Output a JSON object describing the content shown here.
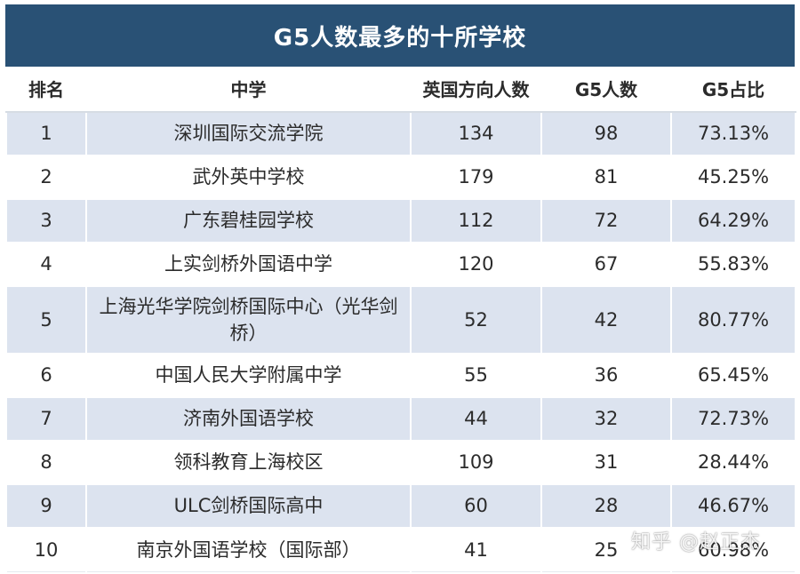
{
  "title": "G5人数最多的十所学校",
  "columns": [
    "排名",
    "中学",
    "英国方向人数",
    "G5人数",
    "G5占比"
  ],
  "rows": [
    {
      "rank": "1",
      "school": "深圳国际交流学院",
      "uk": "134",
      "g5": "98",
      "ratio": "73.13%"
    },
    {
      "rank": "2",
      "school": "武外英中学校",
      "uk": "179",
      "g5": "81",
      "ratio": "45.25%"
    },
    {
      "rank": "3",
      "school": "广东碧桂园学校",
      "uk": "112",
      "g5": "72",
      "ratio": "64.29%"
    },
    {
      "rank": "4",
      "school": "上实剑桥外国语中学",
      "uk": "120",
      "g5": "67",
      "ratio": "55.83%"
    },
    {
      "rank": "5",
      "school": "上海光华学院剑桥国际中心（光华剑桥）",
      "uk": "52",
      "g5": "42",
      "ratio": "80.77%"
    },
    {
      "rank": "6",
      "school": "中国人民大学附属中学",
      "uk": "55",
      "g5": "36",
      "ratio": "65.45%"
    },
    {
      "rank": "7",
      "school": "济南外国语学校",
      "uk": "44",
      "g5": "32",
      "ratio": "72.73%"
    },
    {
      "rank": "8",
      "school": "领科教育上海校区",
      "uk": "109",
      "g5": "31",
      "ratio": "28.44%"
    },
    {
      "rank": "9",
      "school": "ULC剑桥国际高中",
      "uk": "60",
      "g5": "28",
      "ratio": "46.67%"
    },
    {
      "rank": "10",
      "school": "南京外国语学校（国际部）",
      "uk": "41",
      "g5": "25",
      "ratio": "60.98%"
    }
  ],
  "watermark": "知乎 @赵正杰",
  "colors": {
    "header_bg": "#295175",
    "row_alt": "#dce3ef"
  }
}
